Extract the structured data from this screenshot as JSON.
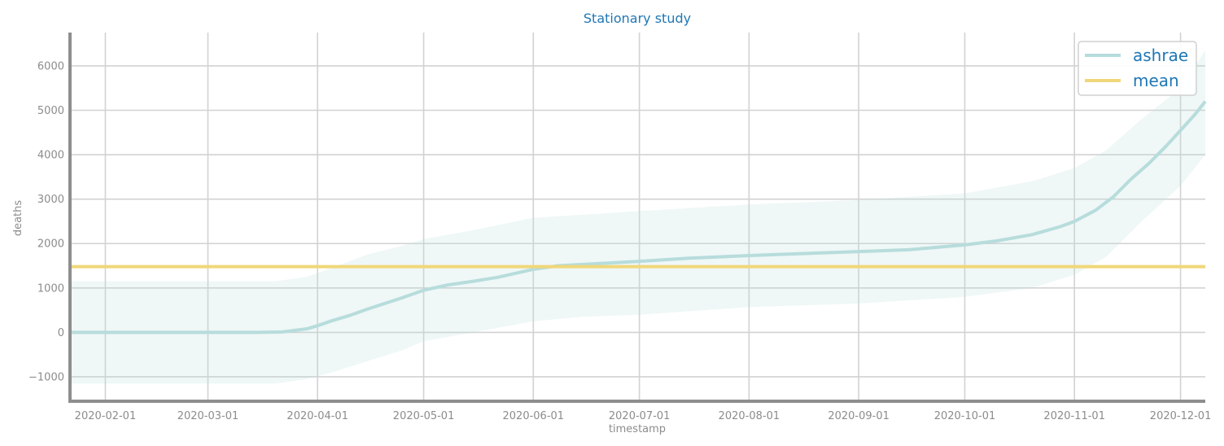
{
  "chart_data": {
    "type": "line",
    "title": "Stationary study",
    "xlabel": "timestamp",
    "ylabel": "deaths",
    "x_ticks": [
      "2020-02-01",
      "2020-03-01",
      "2020-04-01",
      "2020-05-01",
      "2020-06-01",
      "2020-07-01",
      "2020-08-01",
      "2020-09-01",
      "2020-10-01",
      "2020-11-01",
      "2020-12-01"
    ],
    "y_ticks": [
      "−1000",
      "0",
      "1000",
      "2000",
      "3000",
      "4000",
      "5000",
      "6000"
    ],
    "xlim": [
      "2020-01-22",
      "2020-12-08"
    ],
    "ylim": [
      -1550,
      6750
    ],
    "grid": true,
    "legend_position": "top-right",
    "series": [
      {
        "name": "ashrae",
        "color": "#b7dcdc",
        "points": [
          [
            "2020-01-22",
            0
          ],
          [
            "2020-02-01",
            0
          ],
          [
            "2020-03-01",
            0
          ],
          [
            "2020-03-15",
            0
          ],
          [
            "2020-03-22",
            10
          ],
          [
            "2020-03-25",
            40
          ],
          [
            "2020-03-29",
            80
          ],
          [
            "2020-04-01",
            150
          ],
          [
            "2020-04-05",
            260
          ],
          [
            "2020-04-10",
            380
          ],
          [
            "2020-04-15",
            520
          ],
          [
            "2020-04-20",
            650
          ],
          [
            "2020-04-25",
            780
          ],
          [
            "2020-05-01",
            950
          ],
          [
            "2020-05-08",
            1070
          ],
          [
            "2020-05-15",
            1150
          ],
          [
            "2020-05-22",
            1240
          ],
          [
            "2020-06-01",
            1420
          ],
          [
            "2020-06-08",
            1500
          ],
          [
            "2020-06-15",
            1530
          ],
          [
            "2020-07-01",
            1600
          ],
          [
            "2020-07-15",
            1670
          ],
          [
            "2020-08-01",
            1730
          ],
          [
            "2020-08-15",
            1770
          ],
          [
            "2020-09-01",
            1820
          ],
          [
            "2020-09-15",
            1860
          ],
          [
            "2020-10-01",
            1970
          ],
          [
            "2020-10-10",
            2060
          ],
          [
            "2020-10-20",
            2200
          ],
          [
            "2020-10-28",
            2380
          ],
          [
            "2020-11-01",
            2500
          ],
          [
            "2020-11-07",
            2750
          ],
          [
            "2020-11-12",
            3050
          ],
          [
            "2020-11-17",
            3450
          ],
          [
            "2020-11-22",
            3800
          ],
          [
            "2020-11-27",
            4200
          ],
          [
            "2020-12-01",
            4550
          ],
          [
            "2020-12-05",
            4900
          ],
          [
            "2020-12-08",
            5200
          ]
        ],
        "band_upper": [
          [
            "2020-01-22",
            1150
          ],
          [
            "2020-03-01",
            1150
          ],
          [
            "2020-03-20",
            1150
          ],
          [
            "2020-03-29",
            1250
          ],
          [
            "2020-04-05",
            1450
          ],
          [
            "2020-04-15",
            1750
          ],
          [
            "2020-04-25",
            1950
          ],
          [
            "2020-05-01",
            2100
          ],
          [
            "2020-05-15",
            2300
          ],
          [
            "2020-06-01",
            2580
          ],
          [
            "2020-06-15",
            2650
          ],
          [
            "2020-07-01",
            2730
          ],
          [
            "2020-08-01",
            2880
          ],
          [
            "2020-09-01",
            2980
          ],
          [
            "2020-10-01",
            3130
          ],
          [
            "2020-10-20",
            3400
          ],
          [
            "2020-11-01",
            3700
          ],
          [
            "2020-11-10",
            4100
          ],
          [
            "2020-11-20",
            4800
          ],
          [
            "2020-12-01",
            5500
          ],
          [
            "2020-12-08",
            6350
          ]
        ],
        "band_lower": [
          [
            "2020-01-22",
            -1150
          ],
          [
            "2020-03-01",
            -1150
          ],
          [
            "2020-03-20",
            -1150
          ],
          [
            "2020-03-29",
            -1050
          ],
          [
            "2020-04-05",
            -900
          ],
          [
            "2020-04-15",
            -650
          ],
          [
            "2020-04-25",
            -400
          ],
          [
            "2020-05-01",
            -200
          ],
          [
            "2020-05-15",
            0
          ],
          [
            "2020-06-01",
            250
          ],
          [
            "2020-06-15",
            350
          ],
          [
            "2020-07-01",
            400
          ],
          [
            "2020-08-01",
            570
          ],
          [
            "2020-09-01",
            650
          ],
          [
            "2020-10-01",
            800
          ],
          [
            "2020-10-20",
            1000
          ],
          [
            "2020-11-01",
            1300
          ],
          [
            "2020-11-10",
            1700
          ],
          [
            "2020-11-20",
            2500
          ],
          [
            "2020-12-01",
            3300
          ],
          [
            "2020-12-08",
            4000
          ]
        ]
      },
      {
        "name": "mean",
        "color": "#f0d77a",
        "points": [
          [
            "2020-01-22",
            1480
          ],
          [
            "2020-12-08",
            1480
          ]
        ]
      }
    ]
  }
}
